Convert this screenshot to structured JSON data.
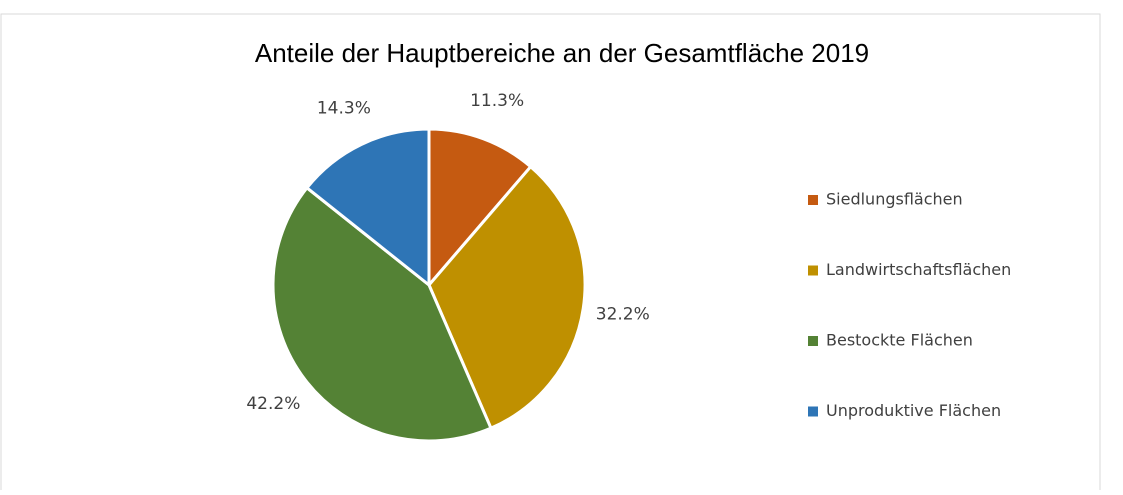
{
  "chart_data": {
    "type": "pie",
    "title": "Anteile der Hauptbereiche an der Gesamtfläche 2019",
    "categories": [
      "Siedlungsflächen",
      "Landwirtschaftsflächen",
      "Bestockte Flächen",
      "Unproduktive Flächen"
    ],
    "values": [
      11.3,
      32.2,
      42.2,
      14.3
    ],
    "value_labels": [
      "11.3%",
      "32.2%",
      "42.2%",
      "14.3%"
    ],
    "colors": [
      "#c55a11",
      "#bf9000",
      "#548235",
      "#2e75b6"
    ],
    "legend": "right"
  }
}
